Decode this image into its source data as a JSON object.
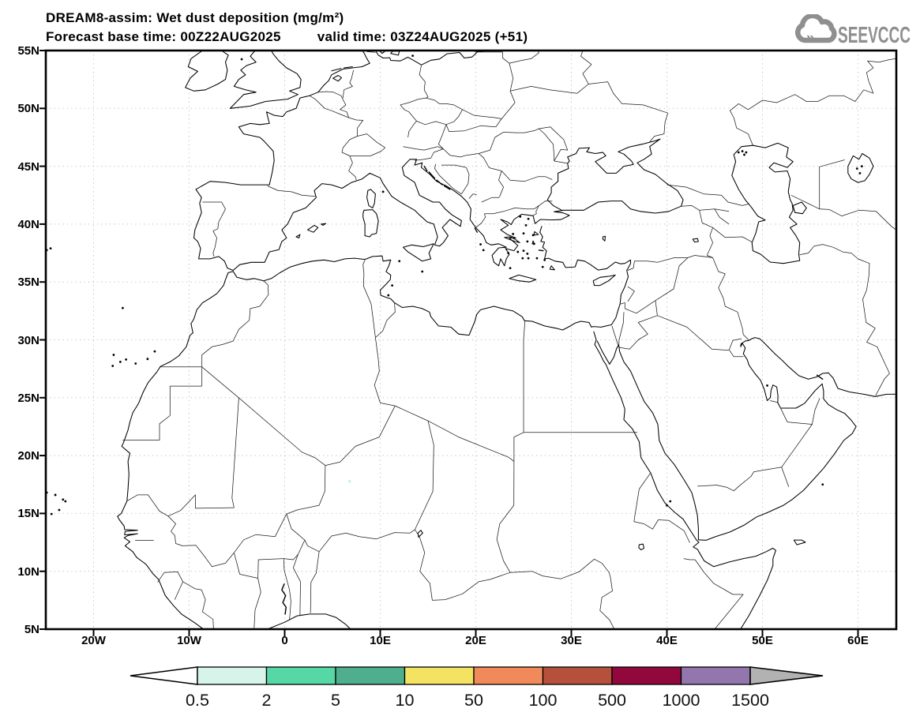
{
  "header": {
    "title_line1": "DREAM8-assim: Wet dust deposition (mg/m²)",
    "forecast_label": "Forecast base time: 00Z22AUG2025",
    "valid_label": "valid time: 03Z24AUG2025 (+51)"
  },
  "logo": {
    "text": "SEEVCCC",
    "color": "#8f8f8f",
    "icon": "cloud-with-chevrons-icon"
  },
  "axes": {
    "lat_ticks": [
      {
        "label": "55N",
        "lat": 55
      },
      {
        "label": "50N",
        "lat": 50
      },
      {
        "label": "45N",
        "lat": 45
      },
      {
        "label": "40N",
        "lat": 40
      },
      {
        "label": "35N",
        "lat": 35
      },
      {
        "label": "30N",
        "lat": 30
      },
      {
        "label": "25N",
        "lat": 25
      },
      {
        "label": "20N",
        "lat": 20
      },
      {
        "label": "15N",
        "lat": 15
      },
      {
        "label": "10N",
        "lat": 10
      },
      {
        "label": "5N",
        "lat": 5
      }
    ],
    "lon_ticks": [
      {
        "label": "20W",
        "lon": -20
      },
      {
        "label": "10W",
        "lon": -10
      },
      {
        "label": "0",
        "lon": 0
      },
      {
        "label": "10E",
        "lon": 10
      },
      {
        "label": "20E",
        "lon": 20
      },
      {
        "label": "30E",
        "lon": 30
      },
      {
        "label": "40E",
        "lon": 40
      },
      {
        "label": "50E",
        "lon": 50
      },
      {
        "label": "60E",
        "lon": 60
      }
    ]
  },
  "colorbar": {
    "labels": [
      "0.5",
      "2",
      "5",
      "10",
      "50",
      "100",
      "500",
      "1000",
      "1500"
    ],
    "segment_colors": [
      "#d7f4ea",
      "#55d7a6",
      "#4fae8e",
      "#f4e263",
      "#f18a5b",
      "#b5503d",
      "#92083c",
      "#9476af"
    ],
    "left_arrow_color": "#ffffff",
    "right_arrow_color": "#b2b2b2",
    "outline_color": "#000000"
  },
  "chart_data": {
    "type": "heatmap",
    "title": "DREAM8-assim: Wet dust deposition (mg/m²)",
    "forecast_base_time": "00Z22AUG2025",
    "valid_time": "03Z24AUG2025",
    "forecast_hour": "+51",
    "units": "mg/m²",
    "lon_range": [
      -25,
      64
    ],
    "lat_range": [
      5,
      55
    ],
    "grid": {
      "lat_step_deg": 5,
      "lon_step_deg": 10,
      "style": "dotted"
    },
    "scale_levels": [
      0.5,
      2,
      5,
      10,
      50,
      100,
      500,
      1000,
      1500
    ],
    "scale_colors": [
      "#d7f4ea",
      "#55d7a6",
      "#4fae8e",
      "#f4e263",
      "#f18a5b",
      "#b5503d",
      "#92083c",
      "#9476af"
    ],
    "deposition_features": [
      {
        "lon": 6.8,
        "lat": 17.8,
        "value_range": "0.5-2",
        "color": "#c9efe8",
        "note": "single tiny wet-deposition spot in central Sahara (Niger); rest of domain below 0.5"
      }
    ]
  }
}
